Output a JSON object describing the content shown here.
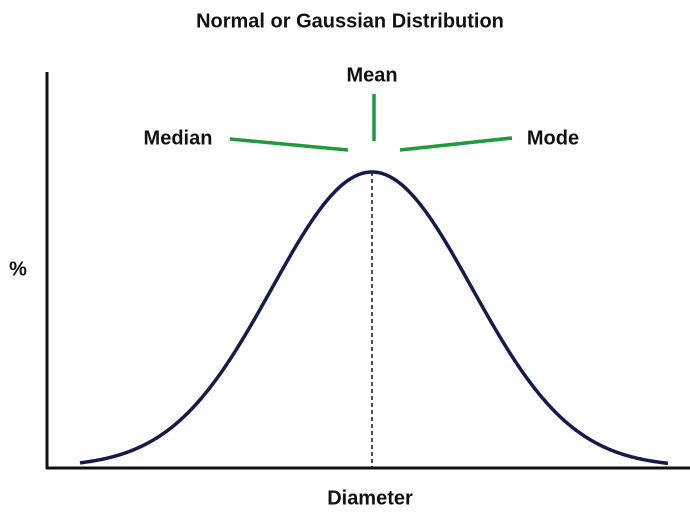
{
  "title": "Normal or Gaussian Distribution",
  "labels": {
    "mean": "Mean",
    "median": "Median",
    "mode": "Mode"
  },
  "y_axis_label": "%",
  "x_axis_label": "Diameter"
}
